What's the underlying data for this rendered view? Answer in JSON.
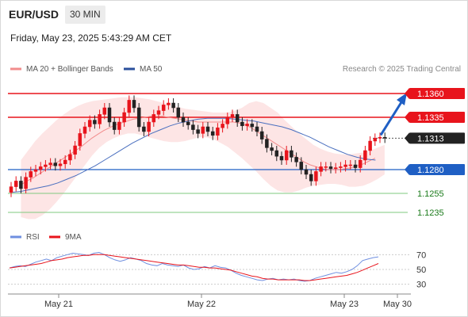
{
  "header": {
    "pair": "EUR/USD",
    "timeframe": "30 MIN",
    "datetime": "Friday, May 23, 2025 5:43:29 AM CET"
  },
  "legend": {
    "ma20": "MA 20 + Bollinger Bands",
    "ma50": "MA 50",
    "credit": "Research © 2025 Trading Central"
  },
  "colors": {
    "resistance": "#e8141c",
    "support": "#1f5fc4",
    "pivot": "#222222",
    "target": "#22a022",
    "bull": "#e8141c",
    "bear": "#222222",
    "ma20": "#f28c8c",
    "ma50": "#4a6fbf",
    "band": "#fde1e1",
    "rsi": "#6f8fe0",
    "rsi9": "#e8141c"
  },
  "chart_data": [
    {
      "type": "candlestick",
      "ylim": [
        1.1225,
        1.1375
      ],
      "x_ticks": [
        "May 21",
        "May 22",
        "May 23",
        "May 30"
      ],
      "levels": [
        {
          "value": 1.136,
          "label": "1.1360",
          "kind": "resistance"
        },
        {
          "value": 1.1335,
          "label": "1.1335",
          "kind": "resistance"
        },
        {
          "value": 1.1313,
          "label": "1.1313",
          "kind": "pivot"
        },
        {
          "value": 1.128,
          "label": "1.1280",
          "kind": "support"
        },
        {
          "value": 1.1255,
          "label": "1.1255",
          "kind": "target"
        },
        {
          "value": 1.1235,
          "label": "1.1235",
          "kind": "target"
        }
      ],
      "close": [
        1.1262,
        1.1268,
        1.126,
        1.1272,
        1.1278,
        1.128,
        1.1283,
        1.1285,
        1.1287,
        1.1284,
        1.1286,
        1.129,
        1.1296,
        1.1305,
        1.1318,
        1.1325,
        1.1332,
        1.1328,
        1.1338,
        1.1345,
        1.133,
        1.1322,
        1.133,
        1.134,
        1.1353,
        1.1345,
        1.1325,
        1.132,
        1.133,
        1.1338,
        1.1342,
        1.1348,
        1.135,
        1.1345,
        1.1335,
        1.133,
        1.1327,
        1.1322,
        1.1318,
        1.1325,
        1.132,
        1.1316,
        1.1324,
        1.1328,
        1.1335,
        1.1338,
        1.133,
        1.1326,
        1.1328,
        1.1325,
        1.132,
        1.1312,
        1.1303,
        1.13,
        1.1294,
        1.129,
        1.13,
        1.1293,
        1.1288,
        1.128,
        1.1275,
        1.1268,
        1.1278,
        1.1283,
        1.1283,
        1.1281,
        1.1282,
        1.1283,
        1.1285,
        1.1285,
        1.1282,
        1.129,
        1.13,
        1.131,
        1.1313,
        1.1314,
        1.1313
      ],
      "open": [
        1.1256,
        1.1262,
        1.1268,
        1.126,
        1.1272,
        1.1278,
        1.128,
        1.1283,
        1.1285,
        1.1287,
        1.1284,
        1.1286,
        1.129,
        1.1296,
        1.1305,
        1.1318,
        1.1325,
        1.1332,
        1.1328,
        1.1338,
        1.1345,
        1.133,
        1.1322,
        1.133,
        1.134,
        1.1353,
        1.1345,
        1.1325,
        1.132,
        1.133,
        1.1338,
        1.1342,
        1.1348,
        1.135,
        1.1345,
        1.1335,
        1.133,
        1.1327,
        1.1322,
        1.1318,
        1.1325,
        1.132,
        1.1316,
        1.1324,
        1.1328,
        1.1335,
        1.1338,
        1.133,
        1.1326,
        1.1328,
        1.1325,
        1.132,
        1.1312,
        1.1303,
        1.13,
        1.1294,
        1.129,
        1.13,
        1.1293,
        1.1288,
        1.128,
        1.1275,
        1.1268,
        1.1278,
        1.1283,
        1.1283,
        1.1281,
        1.1282,
        1.1283,
        1.1285,
        1.1285,
        1.1282,
        1.129,
        1.13,
        1.131,
        1.1313,
        1.1314
      ],
      "ma20": [
        1.1264,
        1.1268,
        1.1271,
        1.1275,
        1.1279,
        1.1283,
        1.1287,
        1.1291,
        1.1295,
        1.1299,
        1.1303,
        1.1308,
        1.1313,
        1.1317,
        1.1321,
        1.1324,
        1.1327,
        1.1329,
        1.1331,
        1.1333,
        1.1334,
        1.1335,
        1.1336,
        1.1336,
        1.1336,
        1.1335,
        1.1334,
        1.1333,
        1.1332,
        1.1331,
        1.133,
        1.133,
        1.133,
        1.133,
        1.133,
        1.133,
        1.133,
        1.1329,
        1.1327,
        1.1324,
        1.132,
        1.1316,
        1.1312,
        1.1308,
        1.1304,
        1.13,
        1.1296,
        1.1292,
        1.1288,
        1.1285,
        1.1283,
        1.1281,
        1.128,
        1.128,
        1.128,
        1.1281,
        1.1282,
        1.1284,
        1.1286,
        1.1289,
        1.1292
      ],
      "ma20_x_start": 2,
      "band_upper": [
        1.129,
        1.13,
        1.131,
        1.1318,
        1.1325,
        1.1332,
        1.1338,
        1.1343,
        1.1347,
        1.135,
        1.1352,
        1.1353,
        1.1354,
        1.1355,
        1.1356,
        1.1356,
        1.1356,
        1.1355,
        1.1354,
        1.1352,
        1.135,
        1.1348,
        1.1346,
        1.1344,
        1.1343,
        1.1342,
        1.1341,
        1.134,
        1.134,
        1.134,
        1.1342,
        1.1345,
        1.135,
        1.1352,
        1.135,
        1.1345,
        1.134,
        1.1332,
        1.1325,
        1.1318,
        1.1312,
        1.1306,
        1.1302,
        1.1299,
        1.1297,
        1.1296,
        1.1296,
        1.1297,
        1.1298,
        1.13,
        1.1303,
        1.1306
      ],
      "band_lower": [
        1.123,
        1.1228,
        1.1228,
        1.1232,
        1.1238,
        1.1246,
        1.1255,
        1.1265,
        1.1275,
        1.1285,
        1.1295,
        1.1303,
        1.1309,
        1.1313,
        1.1316,
        1.1318,
        1.1318,
        1.1316,
        1.1314,
        1.1312,
        1.131,
        1.1309,
        1.1309,
        1.131,
        1.1312,
        1.1314,
        1.1314,
        1.1312,
        1.1308,
        1.1304,
        1.1298,
        1.1292,
        1.1285,
        1.1278,
        1.127,
        1.1263,
        1.1258,
        1.1256,
        1.1256,
        1.1258,
        1.1261,
        1.1263,
        1.1264,
        1.1265,
        1.1265,
        1.1264,
        1.1262,
        1.1262,
        1.1263,
        1.1266,
        1.127,
        1.1275
      ],
      "ma50": [
        1.1256,
        1.1257,
        1.1259,
        1.1261,
        1.1263,
        1.1266,
        1.127,
        1.1274,
        1.1279,
        1.1284,
        1.129,
        1.1296,
        1.1302,
        1.1308,
        1.1313,
        1.1318,
        1.1322,
        1.1326,
        1.1329,
        1.1331,
        1.1333,
        1.1334,
        1.1334,
        1.1334,
        1.1333,
        1.1332,
        1.1331,
        1.1329,
        1.1327,
        1.1325,
        1.1322,
        1.1318,
        1.1314,
        1.1309,
        1.1304,
        1.13,
        1.1296,
        1.1293,
        1.1291,
        1.129
      ]
    },
    {
      "type": "line",
      "title": "",
      "series": [
        {
          "name": "RSI",
          "values": [
            52,
            54,
            55,
            54,
            57,
            60,
            62,
            64,
            62,
            66,
            68,
            70,
            72,
            71,
            70,
            69,
            72,
            73,
            70,
            66,
            63,
            61,
            63,
            66,
            64,
            62,
            58,
            56,
            55,
            58,
            56,
            55,
            54,
            56,
            52,
            50,
            51,
            54,
            52,
            55,
            53,
            52,
            49,
            45,
            42,
            40,
            38,
            36,
            35,
            37,
            38,
            36,
            37,
            36,
            37,
            35,
            34,
            35,
            38,
            40,
            42,
            44,
            46,
            45,
            47,
            50,
            55,
            62,
            64,
            66,
            67
          ]
        },
        {
          "name": "9MA",
          "values": [
            52,
            53,
            54,
            55,
            56,
            57,
            58,
            60,
            62,
            63,
            64,
            66,
            67,
            68,
            69,
            69,
            70,
            70,
            70,
            69,
            68,
            67,
            66,
            65,
            64,
            63,
            62,
            61,
            60,
            59,
            58,
            57,
            56,
            56,
            55,
            54,
            53,
            53,
            52,
            52,
            51,
            50,
            49,
            47,
            45,
            43,
            41,
            40,
            38,
            37,
            37,
            36,
            36,
            36,
            36,
            36,
            35,
            35,
            36,
            37,
            38,
            39,
            40,
            41,
            42,
            44,
            46,
            49,
            52,
            55,
            58
          ]
        }
      ],
      "y_ticks": [
        "70",
        "50",
        "30"
      ],
      "ylim": [
        20,
        80
      ]
    }
  ]
}
